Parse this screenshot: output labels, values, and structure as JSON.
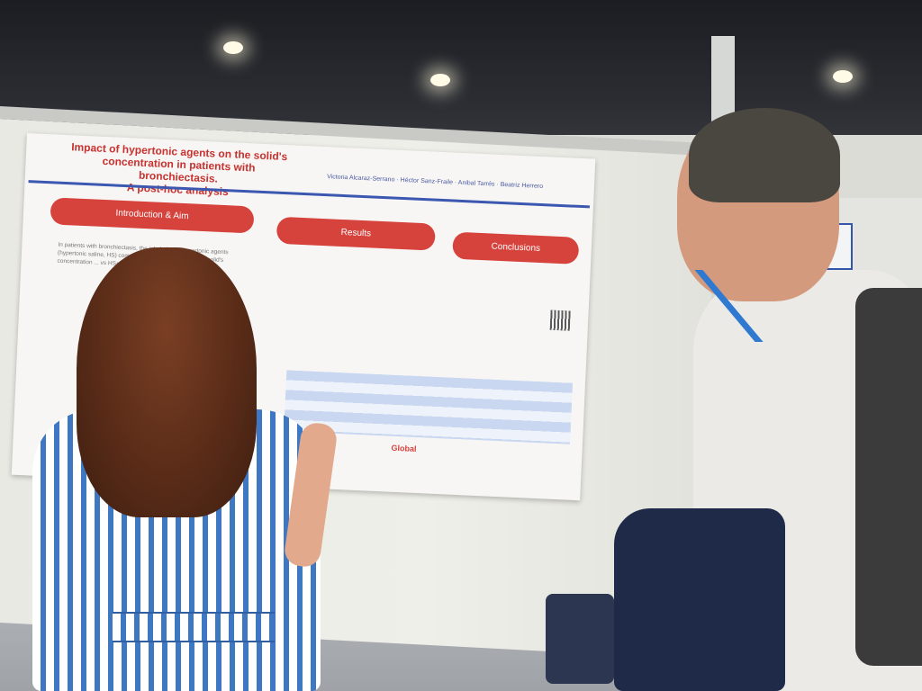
{
  "poster": {
    "title_line1": "Impact of hypertonic agents on the solid's",
    "title_line2": "concentration in patients with bronchiectasis.",
    "title_line3": "A post-hoc analysis",
    "authors": "Victoria Alcaraz-Serrano · Héctor Sanz-Fraile · Anibal Tarrés · Beatriz Herrero",
    "section_intro": "Introduction & Aim",
    "section_results": "Results",
    "section_conclusions": "Conclusions",
    "intro_text": "In patients with bronchiectasis, the inhalation of hypertonic agents (hypertonic saline, HS) compared ... So, the aim of this ... solid's concentration ... vs HS+HA vs HS",
    "logo_global": "Global"
  },
  "colors": {
    "poster_red": "#d6423c",
    "poster_blue": "#3c57b0",
    "dress_blue": "#3f78c2",
    "lanyard_blue": "#2f7ad0"
  }
}
